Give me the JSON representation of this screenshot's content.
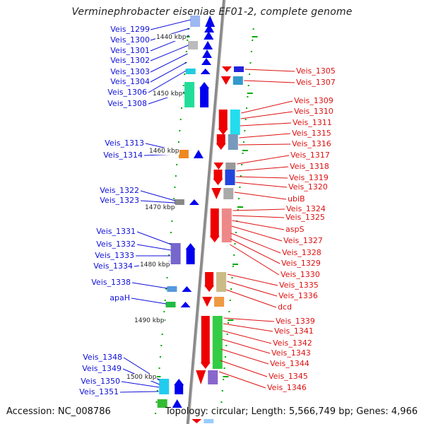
{
  "title": "Verminephrobacter eiseniae EF01-2, complete genome",
  "accession": "Accession: NC_008786",
  "topology": "Topology: circular; Length: 5,566,749 bp; Genes: 4,966",
  "colors": {
    "forward_label": "#1010d8",
    "reverse_label": "#dd1010",
    "forward_gene": "#0000ee",
    "reverse_gene": "#ee0000",
    "backbone": "#8a8a8a",
    "tick": "#00aa00"
  },
  "scale_labels": [
    "1440 kbp",
    "1450 kbp",
    "1460 kbp",
    "1470 kbp",
    "1480 kbp",
    "1490 kbp",
    "1500 kbp"
  ],
  "left_labels": [
    "Veis_1299",
    "Veis_1300",
    "Veis_1301",
    "Veis_1302",
    "Veis_1303",
    "Veis_1304",
    "Veis_1306",
    "Veis_1308",
    "Veis_1313",
    "Veis_1314",
    "Veis_1322",
    "Veis_1323",
    "Veis_1331",
    "Veis_1332",
    "Veis_1333",
    "Veis_1334",
    "Veis_1338",
    "apaH",
    "Veis_1348",
    "Veis_1349",
    "Veis_1350",
    "Veis_1351"
  ],
  "right_labels": [
    "Veis_1305",
    "Veis_1307",
    "Veis_1309",
    "Veis_1310",
    "Veis_1311",
    "Veis_1315",
    "Veis_1316",
    "Veis_1317",
    "Veis_1318",
    "Veis_1319",
    "Veis_1320",
    "ubiB",
    "Veis_1324",
    "Veis_1325",
    "aspS",
    "Veis_1327",
    "Veis_1328",
    "Veis_1329",
    "Veis_1330",
    "Veis_1335",
    "Veis_1336",
    "dcd",
    "Veis_1339",
    "Veis_1341",
    "Veis_1342",
    "Veis_1343",
    "Veis_1344",
    "Veis_1345",
    "Veis_1346"
  ]
}
